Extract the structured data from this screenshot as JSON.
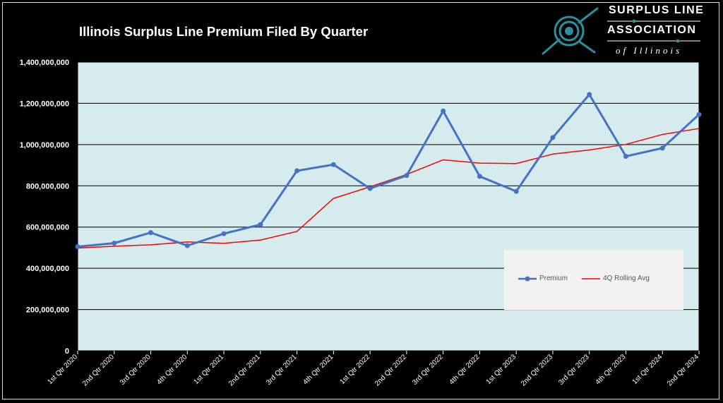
{
  "title": "Illinois Surplus Line Premium Filed By Quarter",
  "logo": {
    "line1": "SURPLUS LINE",
    "line2": "ASSOCIATION",
    "line3": "of Illinois",
    "accent_color": "#2a8fa0"
  },
  "chart_data": {
    "type": "line",
    "title": "Illinois Surplus Line Premium Filed By Quarter",
    "categories": [
      "1st Qtr 2020",
      "2nd Qtr 2020",
      "3rd Qtr 2020",
      "4th Qtr 2020",
      "1st Qtr 2021",
      "2nd Qtr 2021",
      "3rd Qtr 2021",
      "4th Qtr 2021",
      "1st Qtr 2022",
      "2nd Qtr 2022",
      "3rd Qtr 2022",
      "4th Qtr 2022",
      "1st Qtr 2023",
      "2nd Qtr 2023",
      "3rd Qtr 2023",
      "4th Qtr 2023",
      "1st Qtr 2024",
      "2nd Qtr 2024"
    ],
    "series": [
      {
        "name": "Premium",
        "color": "#4472c4",
        "markers": true,
        "values": [
          505000000,
          522000000,
          573000000,
          510000000,
          568000000,
          612000000,
          873000000,
          903000000,
          787000000,
          850000000,
          1163000000,
          846000000,
          773000000,
          1034000000,
          1243000000,
          943000000,
          983000000,
          1146000000
        ]
      },
      {
        "name": "4Q Rolling Avg",
        "color": "#ff0000",
        "markers": false,
        "values": [
          498000000,
          507000000,
          514000000,
          528000000,
          521000000,
          537000000,
          579000000,
          739000000,
          795000000,
          855000000,
          926000000,
          910000000,
          908000000,
          954000000,
          974000000,
          1001000000,
          1049000000,
          1078000000
        ]
      }
    ],
    "ylim": [
      0,
      1400000000
    ],
    "yticks": [
      0,
      200000000,
      400000000,
      600000000,
      800000000,
      1000000000,
      1200000000,
      1400000000
    ],
    "ytick_labels": [
      "0",
      "200,000,000",
      "400,000,000",
      "600,000,000",
      "800,000,000",
      "1,000,000,000",
      "1,200,000,000",
      "1,400,000,000"
    ],
    "grid": true,
    "plot_background": "#d5ebee",
    "legend_position": "bottom-right"
  }
}
